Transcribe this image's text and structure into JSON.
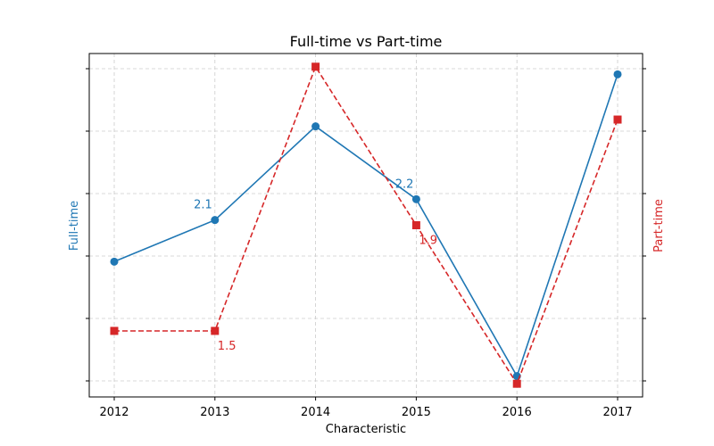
{
  "chart_data": {
    "type": "line",
    "title": "Full-time vs Part-time",
    "xlabel": "Characteristic",
    "categories": [
      "2012",
      "2013",
      "2014",
      "2015",
      "2016",
      "2017"
    ],
    "series": [
      {
        "name": "Full-time",
        "axis": "left",
        "values": [
          1.9,
          2.1,
          2.55,
          2.2,
          1.35,
          2.8
        ],
        "color": "#1f77b4",
        "line_style": "solid",
        "marker": "circle"
      },
      {
        "name": "Part-time",
        "axis": "right",
        "values": [
          1.5,
          1.5,
          2.5,
          1.9,
          1.3,
          2.3
        ],
        "color": "#d62728",
        "line_style": "dashed",
        "marker": "square"
      }
    ],
    "data_labels": [
      {
        "series": 0,
        "index": 1,
        "text": "2.1"
      },
      {
        "series": 0,
        "index": 3,
        "text": "2.2"
      },
      {
        "series": 1,
        "index": 1,
        "text": "1.5"
      },
      {
        "series": 1,
        "index": 3,
        "text": "1.9"
      }
    ],
    "y_left_label": "Full-time",
    "y_right_label": "Part-time",
    "y_left_lim": [
      1.25,
      2.9
    ],
    "y_right_lim": [
      1.25,
      2.55
    ],
    "y_tick_labels_visible": false,
    "grid": true
  }
}
